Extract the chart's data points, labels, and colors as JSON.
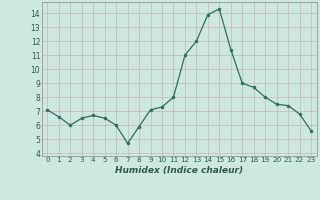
{
  "x": [
    0,
    1,
    2,
    3,
    4,
    5,
    6,
    7,
    8,
    9,
    10,
    11,
    12,
    13,
    14,
    15,
    16,
    17,
    18,
    19,
    20,
    21,
    22,
    23
  ],
  "y": [
    7.1,
    6.6,
    6.0,
    6.5,
    6.7,
    6.5,
    6.0,
    4.7,
    5.9,
    7.1,
    7.3,
    8.0,
    11.0,
    12.0,
    13.9,
    14.3,
    11.4,
    9.0,
    8.7,
    8.0,
    7.5,
    7.4,
    6.8,
    5.6
  ],
  "xlabel": "Humidex (Indice chaleur)",
  "xlim": [
    -0.5,
    23.5
  ],
  "ylim": [
    3.8,
    14.8
  ],
  "yticks": [
    4,
    5,
    6,
    7,
    8,
    9,
    10,
    11,
    12,
    13,
    14
  ],
  "xticks": [
    0,
    1,
    2,
    3,
    4,
    5,
    6,
    7,
    8,
    9,
    10,
    11,
    12,
    13,
    14,
    15,
    16,
    17,
    18,
    19,
    20,
    21,
    22,
    23
  ],
  "line_color": "#2d6e5e",
  "marker_color": "#2d6e5e",
  "bg_color": "#cce8e0",
  "grid_major_color": "#b8d8d0",
  "grid_minor_color": "#d4ece6"
}
